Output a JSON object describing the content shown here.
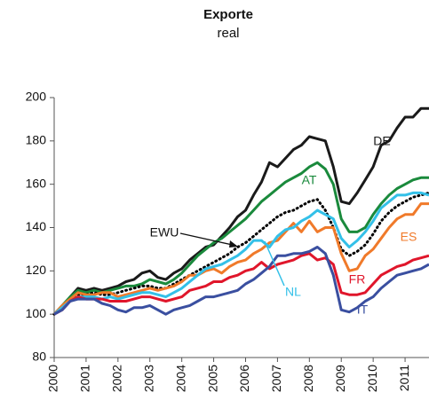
{
  "chart_data": {
    "type": "line",
    "title": "Exporte",
    "subtitle": "real",
    "x": [
      2000,
      2000.25,
      2000.5,
      2000.75,
      2001,
      2001.25,
      2001.5,
      2001.75,
      2002,
      2002.25,
      2002.5,
      2002.75,
      2003,
      2003.25,
      2003.5,
      2003.75,
      2004,
      2004.25,
      2004.5,
      2004.75,
      2005,
      2005.25,
      2005.5,
      2005.75,
      2006,
      2006.25,
      2006.5,
      2006.75,
      2007,
      2007.25,
      2007.5,
      2007.75,
      2008,
      2008.25,
      2008.5,
      2008.75,
      2009,
      2009.25,
      2009.5,
      2009.75,
      2010,
      2010.25,
      2010.5,
      2010.75,
      2011,
      2011.25,
      2011.5,
      2011.75
    ],
    "xlim": [
      2000,
      2011.75
    ],
    "xticks": [
      2000,
      2001,
      2002,
      2003,
      2004,
      2005,
      2006,
      2007,
      2008,
      2009,
      2010,
      2011
    ],
    "ylim": [
      80,
      200
    ],
    "yticks": [
      80,
      100,
      120,
      140,
      160,
      180,
      200
    ],
    "series": [
      {
        "name": "DE",
        "color": "#1a1a1a",
        "values": [
          100,
          103,
          108,
          112,
          111,
          112,
          111,
          112,
          113,
          115,
          116,
          119,
          120,
          117,
          116,
          119,
          121,
          125,
          128,
          131,
          132,
          136,
          140,
          145,
          148,
          155,
          161,
          170,
          168,
          172,
          176,
          178,
          182,
          181,
          180,
          168,
          152,
          151,
          156,
          162,
          168,
          178,
          180,
          186,
          191,
          191,
          195,
          195
        ]
      },
      {
        "name": "AT",
        "color": "#1a8a3c",
        "values": [
          100,
          104,
          108,
          111,
          110,
          111,
          110,
          111,
          112,
          113,
          113,
          114,
          116,
          115,
          114,
          116,
          119,
          123,
          127,
          130,
          133,
          135,
          138,
          141,
          144,
          148,
          152,
          155,
          158,
          161,
          163,
          165,
          168,
          170,
          167,
          160,
          144,
          138,
          138,
          140,
          146,
          151,
          155,
          158,
          160,
          162,
          163,
          163
        ]
      },
      {
        "name": "EWU",
        "color": "#000000",
        "style": "dotted",
        "values": [
          100,
          103,
          107,
          109,
          109,
          110,
          109,
          109,
          110,
          111,
          112,
          113,
          113,
          112,
          112,
          114,
          116,
          118,
          120,
          122,
          124,
          126,
          128,
          131,
          133,
          136,
          139,
          142,
          145,
          147,
          148,
          150,
          152,
          153,
          148,
          140,
          130,
          127,
          129,
          132,
          137,
          143,
          147,
          150,
          152,
          154,
          155,
          156
        ]
      },
      {
        "name": "ES",
        "color": "#f07a2a",
        "values": [
          100,
          104,
          107,
          110,
          109,
          109,
          110,
          110,
          108,
          109,
          110,
          111,
          112,
          111,
          112,
          113,
          115,
          118,
          118,
          120,
          121,
          119,
          122,
          124,
          125,
          128,
          130,
          133,
          134,
          138,
          142,
          138,
          143,
          138,
          140,
          140,
          128,
          120,
          121,
          127,
          130,
          135,
          140,
          144,
          146,
          146,
          151,
          151
        ]
      },
      {
        "name": "NL",
        "color": "#33c0e8",
        "values": [
          100,
          103,
          106,
          108,
          108,
          108,
          107,
          108,
          107,
          108,
          109,
          110,
          110,
          109,
          108,
          110,
          112,
          115,
          118,
          121,
          122,
          123,
          125,
          127,
          130,
          134,
          134,
          131,
          136,
          139,
          140,
          143,
          145,
          148,
          146,
          144,
          135,
          131,
          134,
          138,
          143,
          149,
          152,
          155,
          155,
          156,
          156,
          155
        ]
      },
      {
        "name": "FR",
        "color": "#e0162b",
        "values": [
          100,
          102,
          106,
          108,
          107,
          107,
          107,
          106,
          106,
          106,
          107,
          108,
          108,
          107,
          106,
          107,
          108,
          111,
          112,
          113,
          115,
          115,
          117,
          118,
          120,
          121,
          124,
          121,
          123,
          124,
          125,
          127,
          128,
          125,
          126,
          123,
          110,
          109,
          109,
          110,
          114,
          118,
          120,
          122,
          123,
          125,
          126,
          127
        ]
      },
      {
        "name": "IT",
        "color": "#3a4fa0",
        "values": [
          100,
          102,
          106,
          107,
          107,
          107,
          105,
          104,
          102,
          101,
          103,
          103,
          104,
          102,
          100,
          102,
          103,
          104,
          106,
          108,
          108,
          109,
          110,
          111,
          114,
          116,
          119,
          122,
          127,
          127,
          128,
          128,
          129,
          131,
          128,
          118,
          102,
          101,
          103,
          106,
          108,
          112,
          115,
          118,
          119,
          120,
          121,
          123
        ]
      }
    ]
  }
}
